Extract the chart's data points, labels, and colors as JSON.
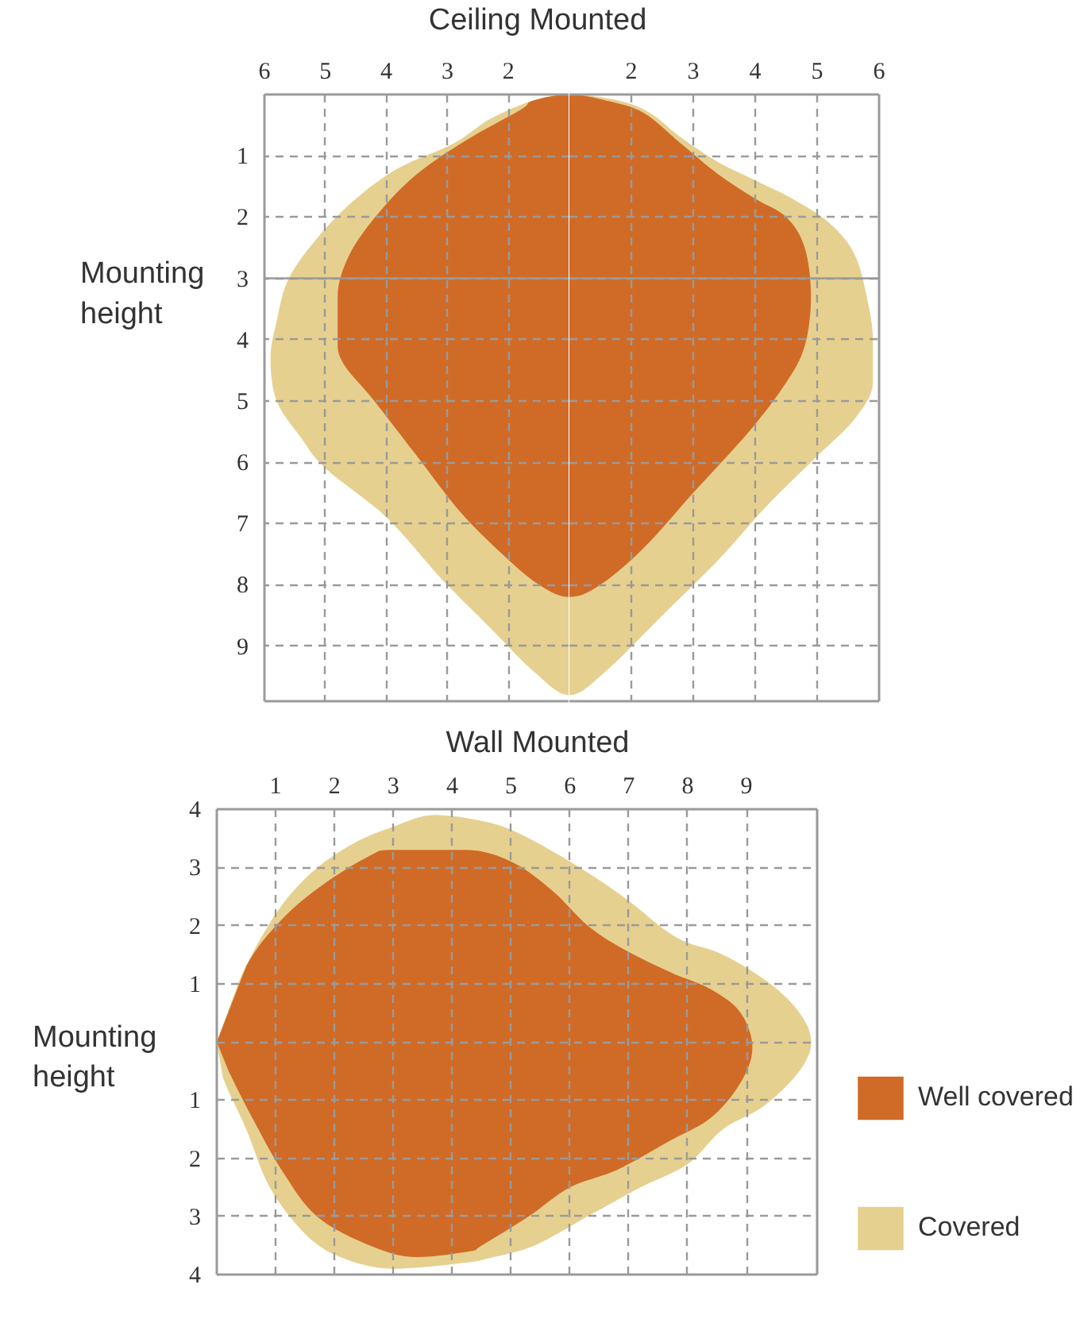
{
  "chart_data": [
    {
      "type": "area",
      "title": "Ceiling Mounted",
      "series": [
        {
          "color": "#d06b27",
          "x": [
            1,
            1.6,
            1.8,
            2.7,
            3.5,
            4.1,
            4.6,
            4.8,
            4.8,
            4.7,
            4.2,
            3.5,
            2.8,
            2.1,
            1.5,
            1
          ],
          "values": [
            0,
            0.1,
            0.25,
            0.75,
            1.3,
            1.9,
            2.6,
            3.3,
            4.0,
            4.4,
            5.0,
            5.9,
            6.8,
            7.5,
            8.0,
            8.2
          ]
        },
        {
          "color": "#e6d08f",
          "x": [
            1,
            1.6,
            2.3,
            2.9,
            3.8,
            4.5,
            5.1,
            5.6,
            5.8,
            5.9,
            5.8,
            5.4,
            5.0,
            4.0,
            3.1,
            2.3,
            1.6,
            1
          ],
          "values": [
            0,
            0.1,
            0.4,
            0.8,
            1.2,
            1.7,
            2.3,
            3.0,
            3.7,
            4.3,
            5.0,
            5.6,
            6.1,
            6.9,
            7.9,
            8.7,
            9.4,
            9.8
          ]
        }
      ],
      "xlim": [
        6,
        1
      ],
      "xticks": [
        6,
        5,
        4,
        3,
        2
      ],
      "ylim": [
        9.9,
        0
      ],
      "yticks": [
        1,
        2,
        3,
        4,
        5,
        6,
        7,
        8,
        9
      ],
      "grid": true,
      "ref_lines": [
        {
          "axis": "y",
          "value": 3,
          "label": "Mounting height",
          "color": "#999999",
          "line_style": "solid"
        }
      ]
    },
    {
      "type": "area",
      "series": [
        {
          "color": "#d06b27",
          "x": [
            1,
            1.6,
            2.2,
            2.8,
            3.4,
            4.0,
            4.5,
            4.8,
            4.9,
            4.8,
            4.5,
            3.9,
            3.0,
            2.2,
            1.5,
            1
          ],
          "values": [
            0,
            0.1,
            0.3,
            0.8,
            1.3,
            1.7,
            2.0,
            2.5,
            3.3,
            4.1,
            4.7,
            5.5,
            6.5,
            7.4,
            8.0,
            8.2
          ]
        },
        {
          "color": "#e6d08f",
          "x": [
            1,
            1.8,
            2.3,
            2.8,
            3.4,
            4.0,
            4.6,
            5.2,
            5.6,
            5.8,
            5.9,
            5.9,
            5.6,
            5.0,
            4.2,
            3.4,
            2.5,
            1.6,
            1
          ],
          "values": [
            0,
            0.1,
            0.3,
            0.7,
            1.1,
            1.4,
            1.7,
            2.1,
            2.6,
            3.3,
            4.0,
            4.7,
            5.3,
            5.9,
            6.7,
            7.6,
            8.5,
            9.4,
            9.8
          ]
        }
      ],
      "xlim": [
        1,
        6
      ],
      "xticks": [
        2,
        3,
        4,
        5,
        6
      ],
      "ylim": [
        9.9,
        0
      ],
      "yticks": [
        1,
        2,
        3,
        4,
        5,
        6,
        7,
        8,
        9
      ],
      "tick_labels": "x",
      "grid": true,
      "ref_lines": [
        {
          "axis": "y",
          "value": 3,
          "color": "#999999",
          "line_style": "solid"
        }
      ]
    },
    {
      "type": "area",
      "title": "Wall Mounted",
      "series": [
        {
          "name": "Well covered",
          "color": "#d06b27",
          "x": [
            0,
            0.5,
            1.1,
            1.8,
            2.6,
            3.0,
            4.2,
            5.0,
            5.7,
            6.3,
            6.9,
            7.7,
            8.4,
            8.9,
            9.1,
            8.9,
            8.4,
            7.7,
            6.8,
            6.0,
            5.3,
            4.5,
            4.3,
            3.4,
            2.6,
            1.7,
            1.1,
            0.6,
            0.2
          ],
          "values": [
            0,
            1.3,
            2.1,
            2.7,
            3.2,
            3.3,
            3.3,
            3.1,
            2.6,
            2.0,
            1.6,
            1.2,
            0.9,
            0.5,
            -0.1,
            -0.7,
            -1.3,
            -1.7,
            -2.2,
            -2.5,
            -3.0,
            -3.5,
            -3.6,
            -3.7,
            -3.5,
            -3.0,
            -2.2,
            -1.3,
            -0.5
          ]
        },
        {
          "name": "Covered",
          "color": "#e6d08f",
          "x": [
            0,
            0.4,
            1.0,
            1.6,
            2.3,
            3.0,
            3.7,
            4.5,
            5.1,
            6.0,
            6.9,
            7.8,
            8.6,
            9.4,
            9.9,
            10.1,
            9.9,
            9.3,
            8.6,
            8.0,
            7.2,
            6.3,
            5.4,
            4.7,
            4.2,
            3.0,
            2.1,
            1.5,
            0.9,
            0.5,
            0.1
          ],
          "values": [
            0,
            1.1,
            2.2,
            2.9,
            3.4,
            3.7,
            3.9,
            3.8,
            3.6,
            3.1,
            2.5,
            1.8,
            1.5,
            1.0,
            0.5,
            0,
            -0.5,
            -1.1,
            -1.5,
            -2.1,
            -2.5,
            -3.0,
            -3.5,
            -3.7,
            -3.8,
            -3.9,
            -3.7,
            -3.3,
            -2.5,
            -1.5,
            -0.6
          ]
        }
      ],
      "xlim": [
        0,
        10.2
      ],
      "xticks": [
        1,
        2,
        3,
        4,
        5,
        6,
        7,
        8,
        9
      ],
      "ylim": [
        -4,
        4
      ],
      "yticks": [
        {
          "value": 4,
          "label": "4"
        },
        {
          "value": 3,
          "label": "3"
        },
        {
          "value": 2,
          "label": "2"
        },
        {
          "value": 1,
          "label": "1"
        },
        {
          "value": 0,
          "label": null
        },
        {
          "value": -1,
          "label": "1"
        },
        {
          "value": -2,
          "label": "2"
        },
        {
          "value": -3,
          "label": "3"
        },
        {
          "value": -4,
          "label": "4"
        }
      ],
      "grid": true,
      "legend": "right",
      "annotations": [
        {
          "text": "Mounting height",
          "x": 0,
          "y": 0
        }
      ]
    }
  ]
}
